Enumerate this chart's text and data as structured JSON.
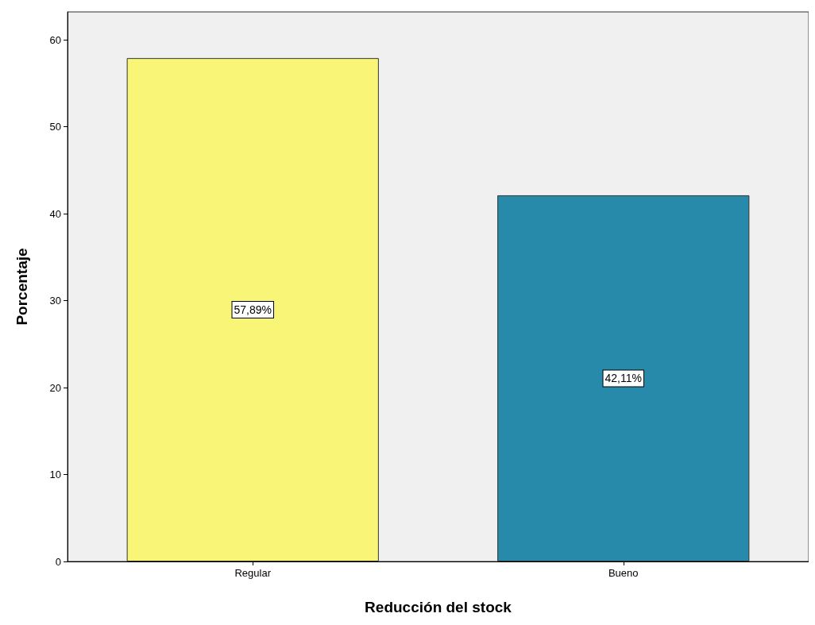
{
  "chart_data": {
    "type": "bar",
    "xlabel": "Reducción del stock",
    "ylabel": "Porcentaje",
    "categories": [
      "Regular",
      "Bueno"
    ],
    "values": [
      57.89,
      42.11
    ],
    "value_labels": [
      "57,89%",
      "42,11%"
    ],
    "colors": [
      "#f8f577",
      "#278aaa"
    ],
    "ylim": [
      0,
      63.2
    ],
    "yticks": [
      0,
      10,
      20,
      30,
      40,
      50,
      60
    ],
    "grid": false
  }
}
